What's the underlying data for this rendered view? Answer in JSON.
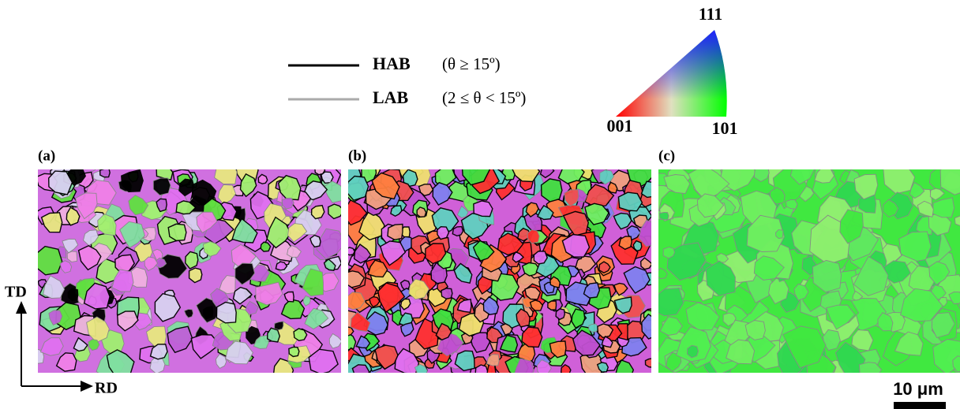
{
  "legend": [
    {
      "label": "HAB",
      "range": "(θ ≥ 15º)"
    },
    {
      "label": "LAB",
      "range": "(2 ≤ θ < 15º)"
    }
  ],
  "ipf": {
    "top": "111",
    "left": "001",
    "right": "101"
  },
  "panels": [
    {
      "label": "(a)"
    },
    {
      "label": "(b)"
    },
    {
      "label": "(c)"
    }
  ],
  "axes": {
    "vertical": "TD",
    "horizontal": "RD"
  },
  "scale_bar": "10 μm"
}
